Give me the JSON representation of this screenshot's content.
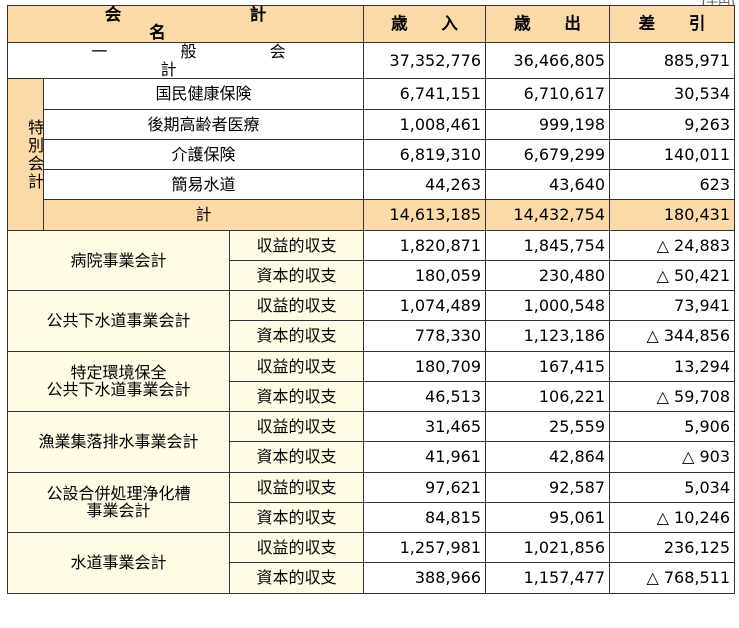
{
  "corner_text": "(千円)",
  "header": {
    "name": "会　計　名",
    "revenue": "歳 入",
    "expenditure": "歳 出",
    "balance": "差 引"
  },
  "general": {
    "name": "一 般 会 計",
    "revenue": "37,352,776",
    "expenditure": "36,466,805",
    "balance": "885,971"
  },
  "special": {
    "group_label": "特別会計",
    "rows": [
      {
        "name": "国民健康保険",
        "revenue": "6,741,151",
        "expenditure": "6,710,617",
        "balance": "30,534"
      },
      {
        "name": "後期高齢者医療",
        "revenue": "1,008,461",
        "expenditure": "999,198",
        "balance": "9,263"
      },
      {
        "name": "介護保険",
        "revenue": "6,819,310",
        "expenditure": "6,679,299",
        "balance": "140,011"
      },
      {
        "name": "簡易水道",
        "revenue": "44,263",
        "expenditure": "43,640",
        "balance": "623"
      }
    ],
    "total": {
      "name": "計",
      "revenue": "14,613,185",
      "expenditure": "14,432,754",
      "balance": "180,431"
    }
  },
  "enterprises": [
    {
      "name_line1": "病院事業会計",
      "name_line2": "",
      "rows": [
        {
          "type": "収益的収支",
          "revenue": "1,820,871",
          "expenditure": "1,845,754",
          "balance": "△ 24,883"
        },
        {
          "type": "資本的収支",
          "revenue": "180,059",
          "expenditure": "230,480",
          "balance": "△ 50,421"
        }
      ]
    },
    {
      "name_line1": "公共下水道事業会計",
      "name_line2": "",
      "rows": [
        {
          "type": "収益的収支",
          "revenue": "1,074,489",
          "expenditure": "1,000,548",
          "balance": "73,941"
        },
        {
          "type": "資本的収支",
          "revenue": "778,330",
          "expenditure": "1,123,186",
          "balance": "△ 344,856"
        }
      ]
    },
    {
      "name_line1": "特定環境保全",
      "name_line2": "公共下水道事業会計",
      "rows": [
        {
          "type": "収益的収支",
          "revenue": "180,709",
          "expenditure": "167,415",
          "balance": "13,294"
        },
        {
          "type": "資本的収支",
          "revenue": "46,513",
          "expenditure": "106,221",
          "balance": "△ 59,708"
        }
      ]
    },
    {
      "name_line1": "漁業集落排水事業会計",
      "name_line2": "",
      "rows": [
        {
          "type": "収益的収支",
          "revenue": "31,465",
          "expenditure": "25,559",
          "balance": "5,906"
        },
        {
          "type": "資本的収支",
          "revenue": "41,961",
          "expenditure": "42,864",
          "balance": "△ 903"
        }
      ]
    },
    {
      "name_line1": "公設合併処理浄化槽",
      "name_line2": "事業会計",
      "rows": [
        {
          "type": "収益的収支",
          "revenue": "97,621",
          "expenditure": "92,587",
          "balance": "5,034"
        },
        {
          "type": "資本的収支",
          "revenue": "84,815",
          "expenditure": "95,061",
          "balance": "△ 10,246"
        }
      ]
    },
    {
      "name_line1": "水道事業会計",
      "name_line2": "",
      "rows": [
        {
          "type": "収益的収支",
          "revenue": "1,257,981",
          "expenditure": "1,021,856",
          "balance": "236,125"
        },
        {
          "type": "資本的収支",
          "revenue": "388,966",
          "expenditure": "1,157,477",
          "balance": "△ 768,511"
        }
      ]
    }
  ],
  "colors": {
    "header_bg": "#fbd9a8",
    "cream_bg": "#fffbe4",
    "border": "#333333"
  }
}
